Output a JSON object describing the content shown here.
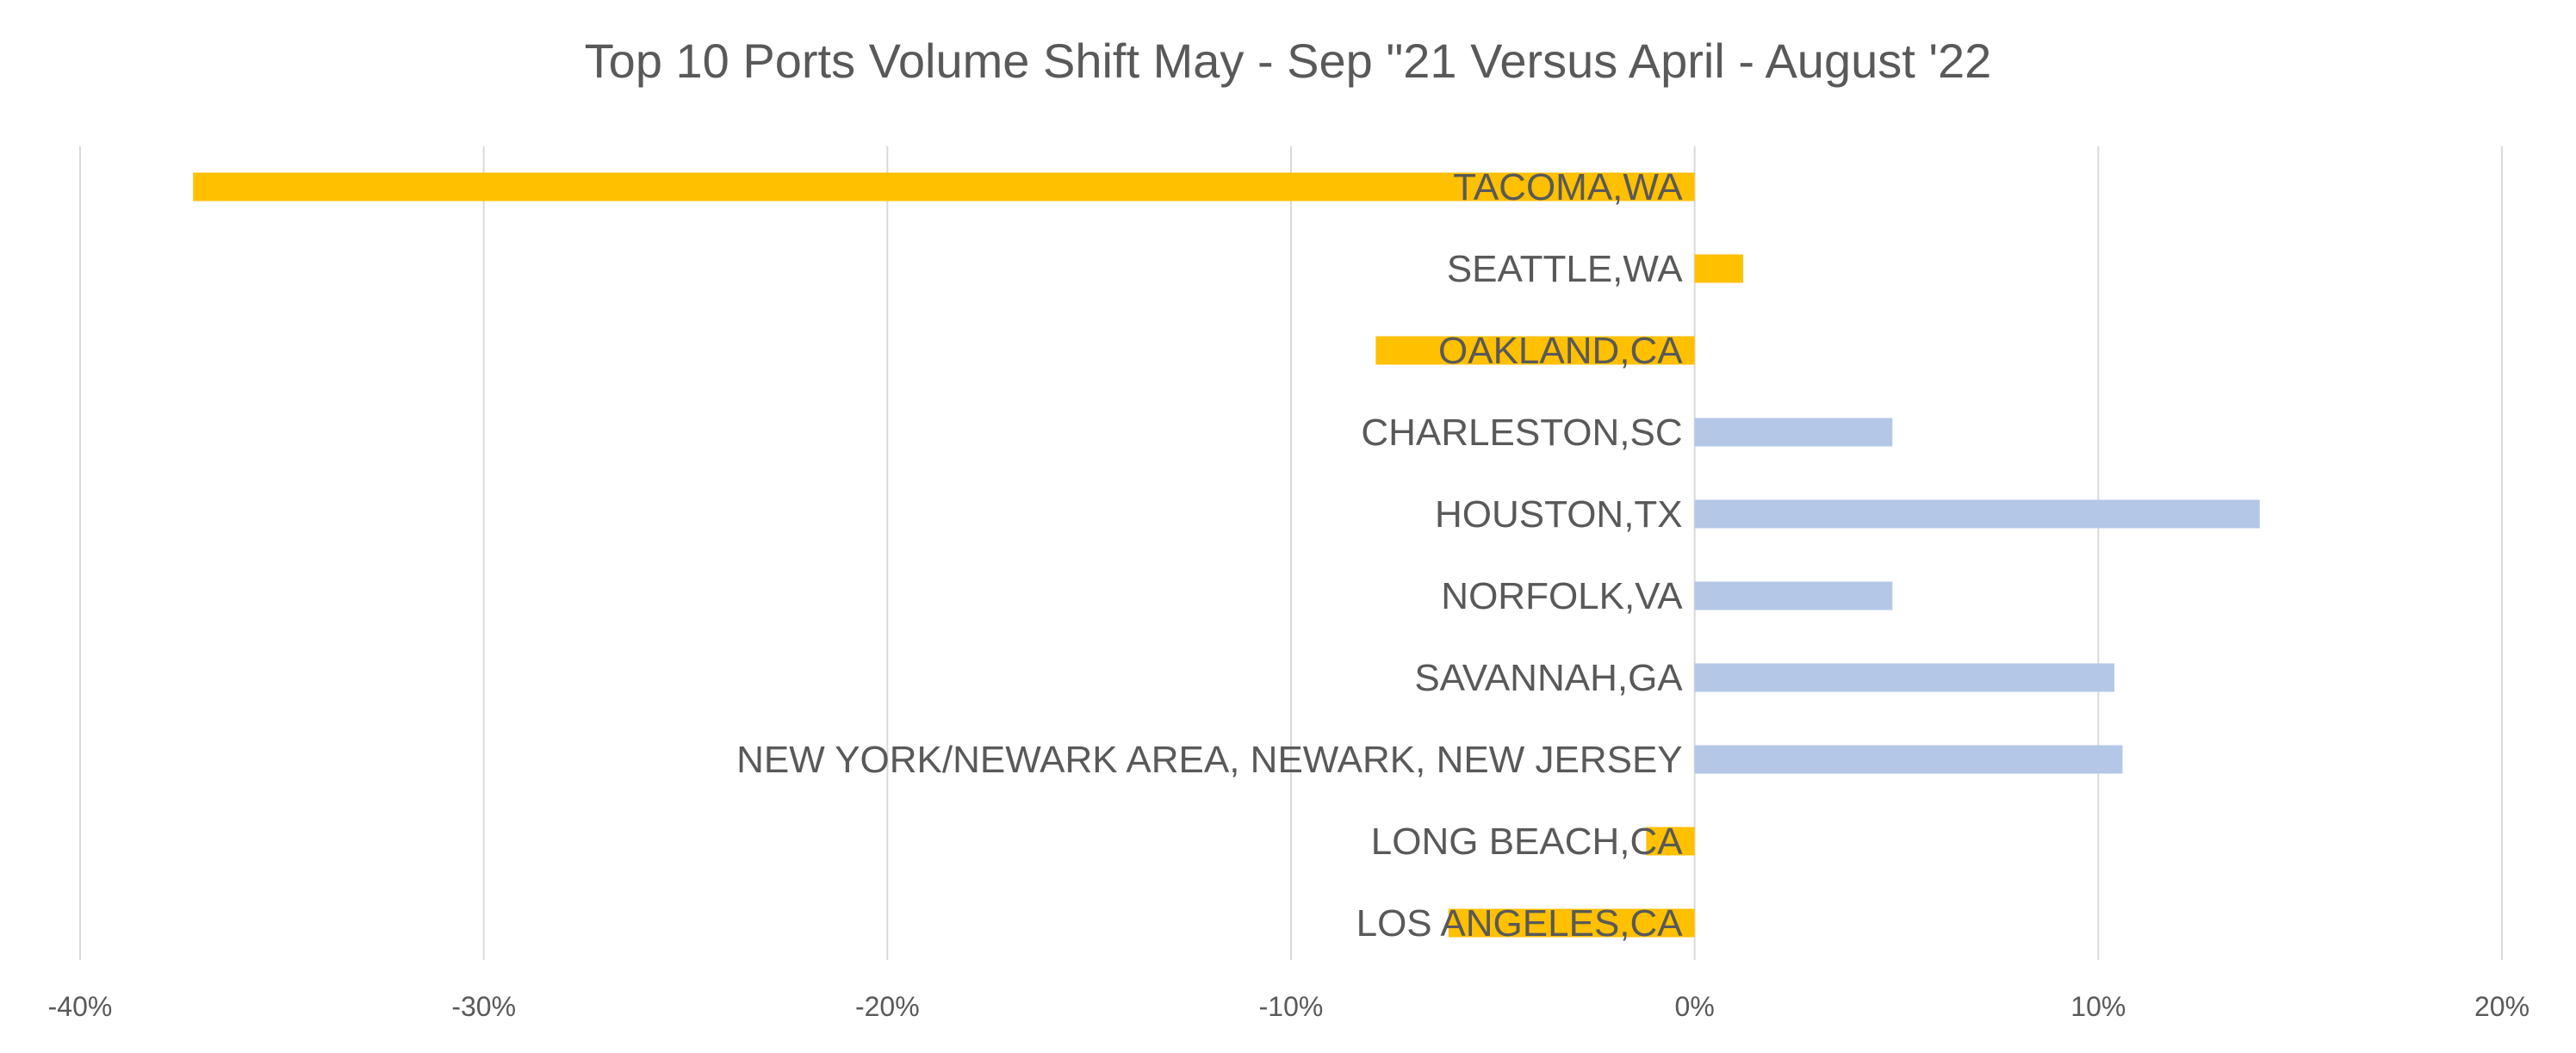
{
  "chart_data": {
    "type": "bar",
    "orientation": "horizontal",
    "title": "Top 10 Ports Volume Shift May - Sep \"21 Versus April - August '22",
    "xlabel": "",
    "ylabel": "",
    "xlim": [
      -0.4,
      0.2
    ],
    "x_ticks": [
      -0.4,
      -0.3,
      -0.2,
      -0.1,
      0,
      0.1,
      0.2
    ],
    "x_tick_labels": [
      "-40%",
      "-30%",
      "-20%",
      "-10%",
      "0%",
      "10%",
      "20%"
    ],
    "grid": "vertical",
    "legend": "none",
    "categories": [
      "TACOMA,WA",
      "SEATTLE,WA",
      "OAKLAND,CA",
      "CHARLESTON,SC",
      "HOUSTON,TX",
      "NORFOLK,VA",
      "SAVANNAH,GA",
      "NEW YORK/NEWARK AREA, NEWARK, NEW JERSEY",
      "LONG BEACH,CA",
      "LOS ANGELES,CA"
    ],
    "values": [
      -0.372,
      0.012,
      -0.079,
      0.049,
      0.14,
      0.049,
      0.104,
      0.106,
      -0.012,
      -0.061
    ],
    "bar_colors": [
      "#FFC000",
      "#FFC000",
      "#FFC000",
      "#B4C7E7",
      "#B4C7E7",
      "#B4C7E7",
      "#B4C7E7",
      "#B4C7E7",
      "#FFC000",
      "#FFC000"
    ],
    "colors": {
      "negative_or_highlight": "#FFC000",
      "positive": "#B4C7E7",
      "gridline": "#D9D9D9",
      "text": "#595959"
    }
  }
}
